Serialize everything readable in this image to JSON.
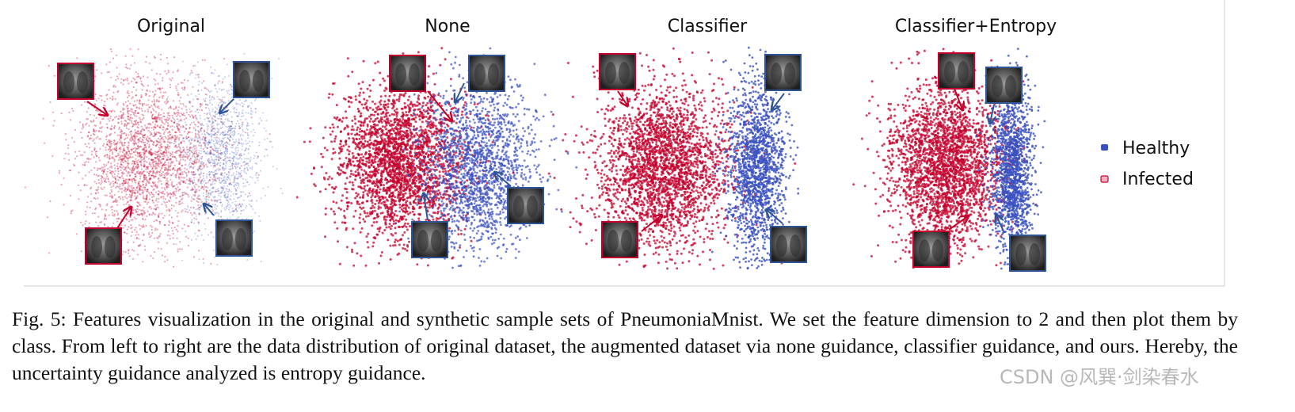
{
  "figure": {
    "panels": [
      {
        "title": "Original"
      },
      {
        "title": "None"
      },
      {
        "title": "Classifier"
      },
      {
        "title": "Classifier+Entropy"
      }
    ],
    "legend": [
      {
        "name": "Healthy",
        "color": "#3a50c0"
      },
      {
        "name": "Infected",
        "color": "#c4002c"
      }
    ]
  },
  "caption": "Fig. 5: Features visualization in the original and synthetic sample sets of PneumoniaMnist. We set the feature dimension to 2 and then plot them by class. From left to right are the data distribution of original dataset, the augmented dataset via none guidance, classifier guidance, and ours. Hereby, the uncertainty guidance analyzed is entropy guidance.",
  "watermark": "CSDN @风巽·剑染春水"
}
